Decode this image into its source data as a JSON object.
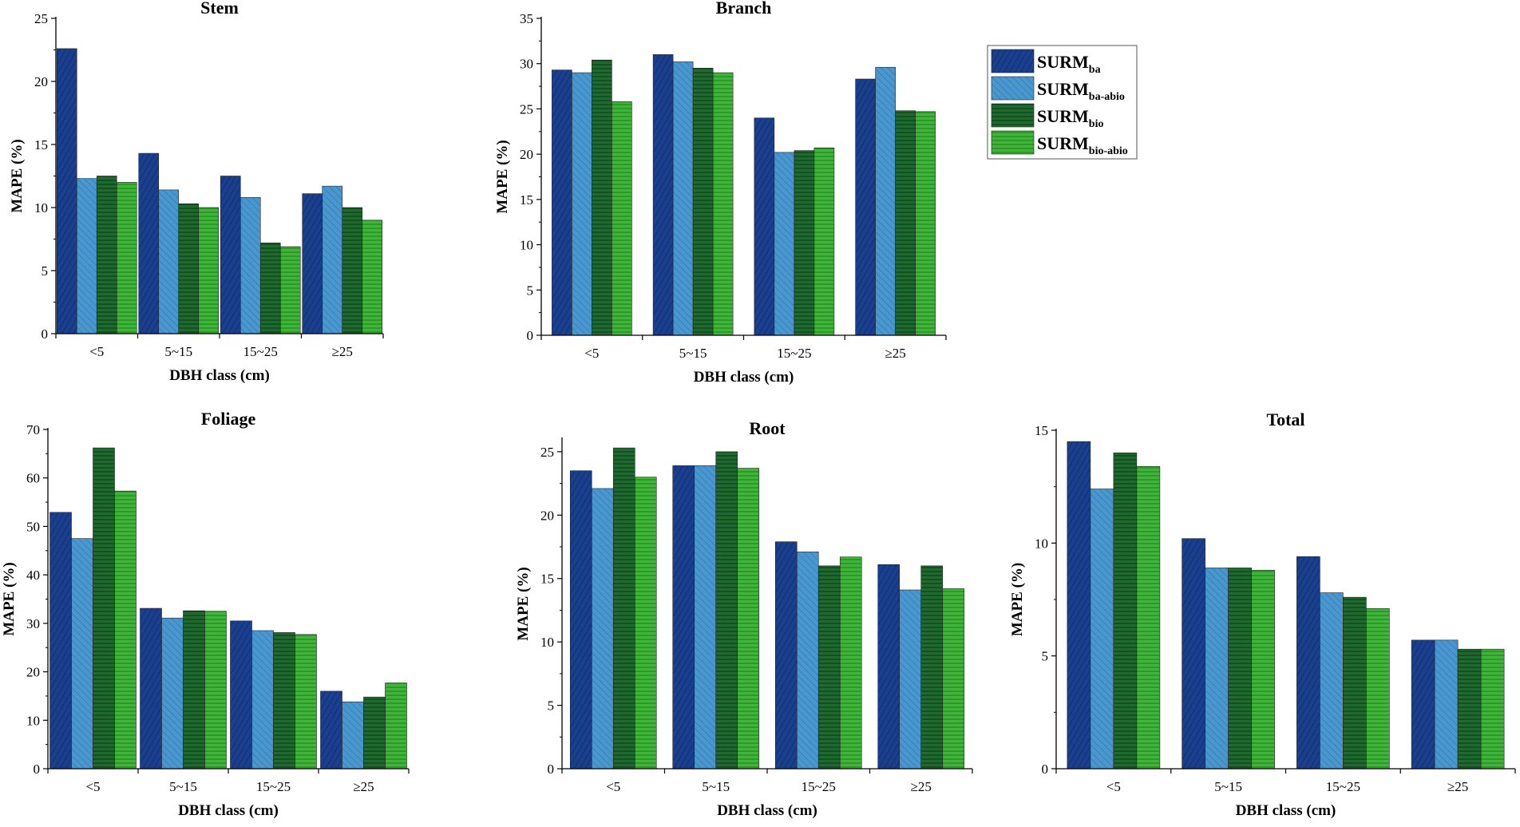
{
  "legend": {
    "items": [
      {
        "name": "SURM",
        "sub": "ba",
        "color": "#1b3f8f",
        "pattern": "hatch-diag-right"
      },
      {
        "name": "SURM",
        "sub": "ba-abio",
        "color": "#4a97cf",
        "pattern": "hatch-diag-left"
      },
      {
        "name": "SURM",
        "sub": "bio",
        "color": "#1f6b2f",
        "pattern": "hatch-horizontal"
      },
      {
        "name": "SURM",
        "sub": "bio-abio",
        "color": "#3fb53a",
        "pattern": "hatch-horizontal"
      }
    ]
  },
  "chart_data": [
    {
      "type": "bar",
      "title": "Stem",
      "xlabel": "DBH class (cm)",
      "ylabel": "MAPE (%)",
      "categories": [
        "<5",
        "5~15",
        "15~25",
        "≥25"
      ],
      "ylim": [
        0,
        25
      ],
      "yticks": [
        0,
        5,
        10,
        15,
        20,
        25
      ],
      "series": [
        {
          "name": "SURMba",
          "values": [
            22.6,
            14.3,
            12.5,
            11.1
          ]
        },
        {
          "name": "SURMba-abio",
          "values": [
            12.3,
            11.4,
            10.8,
            11.7
          ]
        },
        {
          "name": "SURMbio",
          "values": [
            12.5,
            10.3,
            7.2,
            10.0
          ]
        },
        {
          "name": "SURMbio-abio",
          "values": [
            12.0,
            10.0,
            6.9,
            9.0
          ]
        }
      ]
    },
    {
      "type": "bar",
      "title": "Branch",
      "xlabel": "DBH class (cm)",
      "ylabel": "MAPE (%)",
      "categories": [
        "<5",
        "5~15",
        "15~25",
        "≥25"
      ],
      "ylim": [
        0,
        35
      ],
      "yticks": [
        0,
        5,
        10,
        15,
        20,
        25,
        30,
        35
      ],
      "series": [
        {
          "name": "SURMba",
          "values": [
            29.3,
            31.0,
            24.0,
            28.3
          ]
        },
        {
          "name": "SURMba-abio",
          "values": [
            29.0,
            30.2,
            20.2,
            29.6
          ]
        },
        {
          "name": "SURMbio",
          "values": [
            30.4,
            29.5,
            20.4,
            24.8
          ]
        },
        {
          "name": "SURMbio-abio",
          "values": [
            25.8,
            29.0,
            20.7,
            24.7
          ]
        }
      ]
    },
    {
      "type": "bar",
      "title": "Foliage",
      "xlabel": "DBH class (cm)",
      "ylabel": "MAPE (%)",
      "categories": [
        "<5",
        "5~15",
        "15~25",
        "≥25"
      ],
      "ylim": [
        0,
        70
      ],
      "yticks": [
        0,
        10,
        20,
        30,
        40,
        50,
        60,
        70
      ],
      "series": [
        {
          "name": "SURMba",
          "values": [
            52.9,
            33.1,
            30.5,
            16.0
          ]
        },
        {
          "name": "SURMba-abio",
          "values": [
            47.5,
            31.1,
            28.5,
            13.8
          ]
        },
        {
          "name": "SURMbio",
          "values": [
            66.2,
            32.6,
            28.1,
            14.8
          ]
        },
        {
          "name": "SURMbio-abio",
          "values": [
            57.3,
            32.5,
            27.7,
            17.7
          ]
        }
      ]
    },
    {
      "type": "bar",
      "title": "Root",
      "xlabel": "DBH class (cm)",
      "ylabel": "MAPE (%)",
      "categories": [
        "<5",
        "5~15",
        "15~25",
        "≥25"
      ],
      "ylim": [
        0,
        26
      ],
      "yticks": [
        0,
        5,
        10,
        15,
        20,
        25
      ],
      "series": [
        {
          "name": "SURMba",
          "values": [
            23.5,
            23.9,
            17.9,
            16.1
          ]
        },
        {
          "name": "SURMba-abio",
          "values": [
            22.1,
            23.9,
            17.1,
            14.1
          ]
        },
        {
          "name": "SURMbio",
          "values": [
            25.3,
            25.0,
            16.0,
            16.0
          ]
        },
        {
          "name": "SURMbio-abio",
          "values": [
            23.0,
            23.7,
            16.7,
            14.2
          ]
        }
      ]
    },
    {
      "type": "bar",
      "title": "Total",
      "xlabel": "DBH class (cm)",
      "ylabel": "MAPE (%)",
      "categories": [
        "<5",
        "5~15",
        "15~25",
        "≥25"
      ],
      "ylim": [
        0,
        15
      ],
      "yticks": [
        0,
        5,
        10,
        15
      ],
      "series": [
        {
          "name": "SURMba",
          "values": [
            14.5,
            10.2,
            9.4,
            5.7
          ]
        },
        {
          "name": "SURMba-abio",
          "values": [
            12.4,
            8.9,
            7.8,
            5.7
          ]
        },
        {
          "name": "SURMbio",
          "values": [
            14.0,
            8.9,
            7.6,
            5.3
          ]
        },
        {
          "name": "SURMbio-abio",
          "values": [
            13.4,
            8.8,
            7.1,
            5.3
          ]
        }
      ]
    }
  ]
}
